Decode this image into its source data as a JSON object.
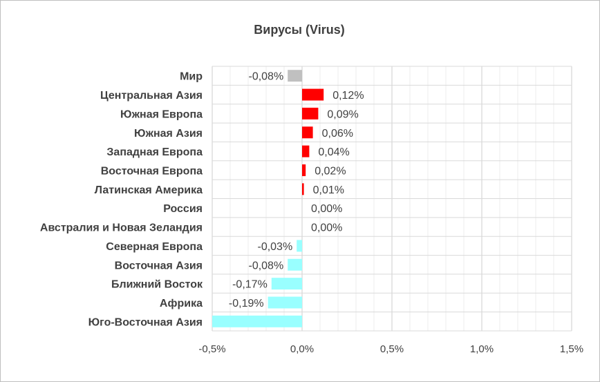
{
  "chart_data": {
    "type": "bar",
    "orientation": "horizontal",
    "title": "Вирусы (Virus)",
    "xlabel": "",
    "ylabel": "",
    "xlim": [
      -0.5,
      1.5
    ],
    "x_ticks": [
      -0.5,
      0.0,
      0.5,
      1.0,
      1.5
    ],
    "x_tick_labels": [
      "-0,5%",
      "0,0%",
      "0,5%",
      "1,0%",
      "1,5%"
    ],
    "grid": true,
    "legend": "none",
    "categories": [
      "Мир",
      "Центральная Азия",
      "Южная Европа",
      "Южная Азия",
      "Западная Европа",
      "Восточная Европа",
      "Латинская Америка",
      "Россия",
      "Австралия и Новая Зеландия",
      "Северная Европа",
      "Восточная Азия",
      "Ближний Восток",
      "Африка",
      "Юго-Восточная Азия"
    ],
    "values": [
      -0.08,
      0.12,
      0.09,
      0.06,
      0.04,
      0.02,
      0.01,
      0.0,
      0.0,
      -0.03,
      -0.08,
      -0.17,
      -0.19,
      -0.5
    ],
    "data_labels": [
      "-0,08%",
      "0,12%",
      "0,09%",
      "0,06%",
      "0,04%",
      "0,02%",
      "0,01%",
      "0,00%",
      "0,00%",
      "-0,03%",
      "-0,08%",
      "-0,17%",
      "-0,19%",
      ""
    ],
    "colors": {
      "world": "#c0c0c0",
      "positive": "#ff0000",
      "negative": "#99ffff",
      "grid_major": "#d9d9d9",
      "grid_minor": "#ededed"
    }
  }
}
